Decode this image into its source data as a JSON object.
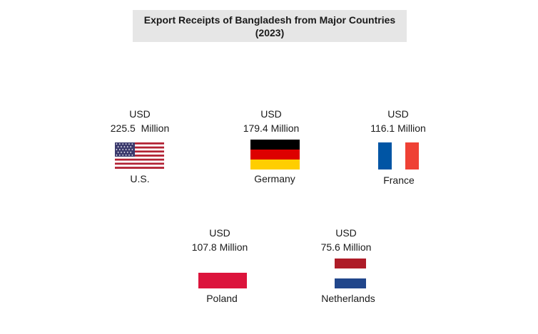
{
  "chart_data": {
    "type": "table",
    "title": "Export Receipts of Bangladesh from Major Countries",
    "subtitle": "(2023)",
    "currency": "USD",
    "unit": "Million",
    "categories": [
      "U.S.",
      "Germany",
      "France",
      "Poland",
      "Netherlands"
    ],
    "values": [
      225.5,
      179.4,
      116.1,
      107.8,
      75.6
    ],
    "value_labels": [
      "225.5  Million",
      "179.4 Million",
      "116.1 Million",
      "107.8 Million",
      "75.6 Million"
    ]
  },
  "colors": {
    "us_red": "#b22234",
    "us_blue": "#3c3b6e",
    "germany_black": "#000000",
    "germany_red": "#dd0000",
    "germany_gold": "#ffce00",
    "france_blue": "#0055a4",
    "france_red": "#ef4135",
    "poland_red": "#dc143c",
    "netherlands_red": "#ae1c28",
    "netherlands_blue": "#21468b"
  },
  "flags": [
    "us-flag",
    "germany-flag",
    "france-flag",
    "poland-flag",
    "netherlands-flag"
  ]
}
